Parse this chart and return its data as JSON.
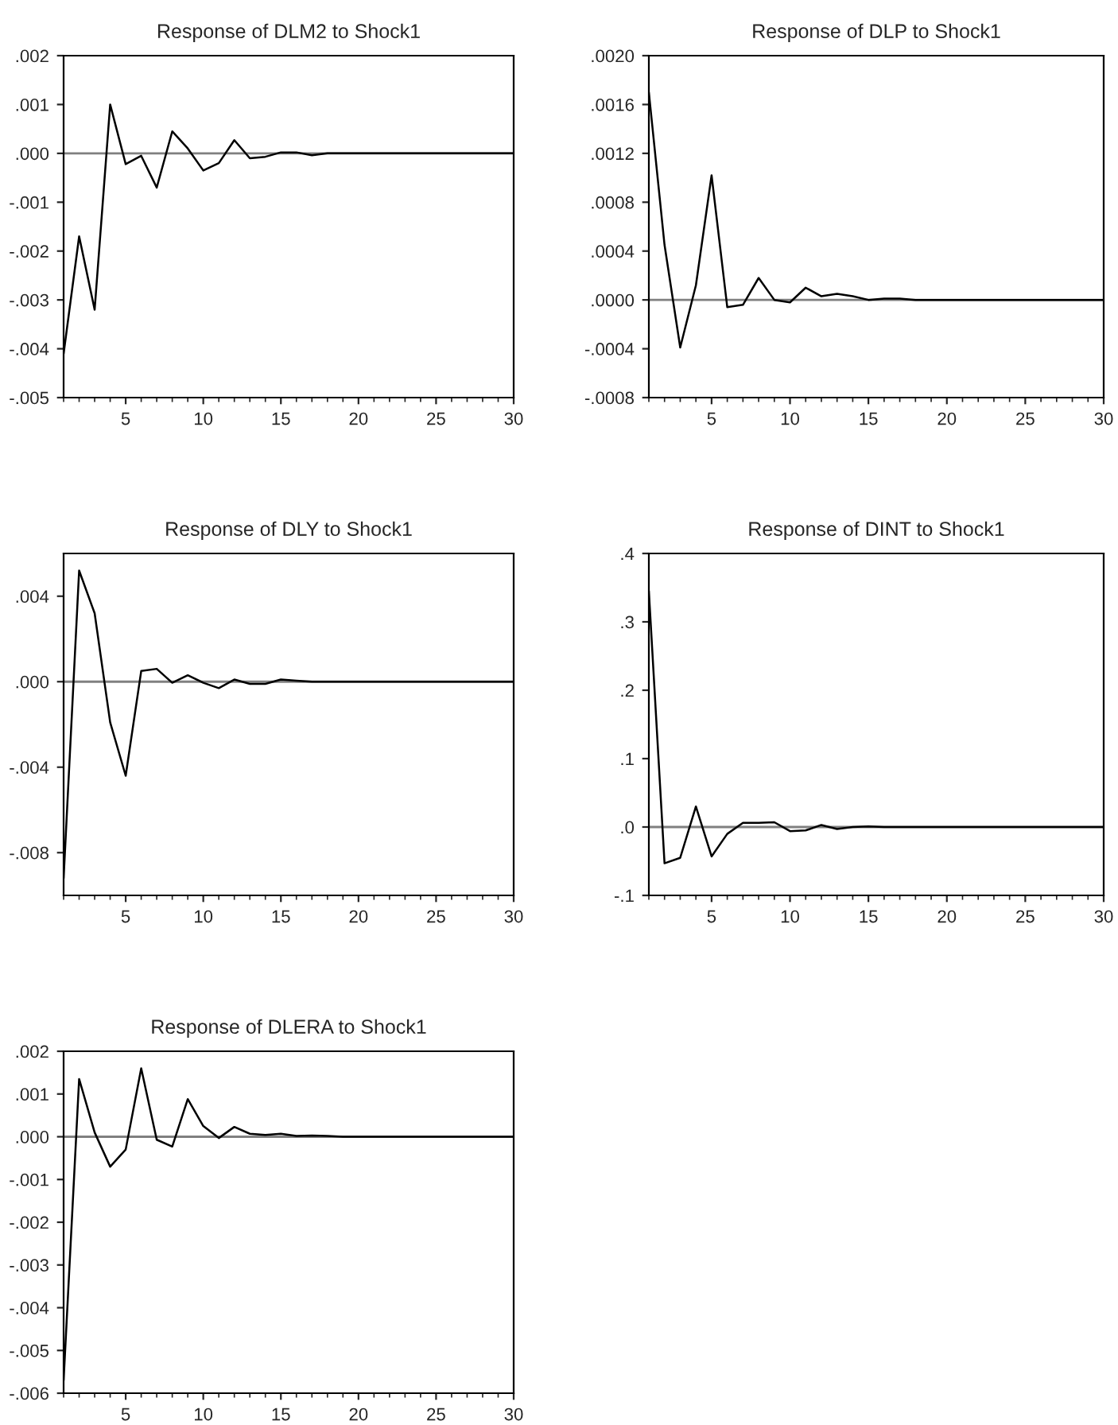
{
  "chart_data": [
    {
      "type": "line",
      "title": "Response of DLM2 to Shock1",
      "x": [
        1,
        2,
        3,
        4,
        5,
        6,
        7,
        8,
        9,
        10,
        11,
        12,
        13,
        14,
        15,
        16,
        17,
        18,
        19,
        20,
        21,
        22,
        23,
        24,
        25,
        26,
        27,
        28,
        29,
        30
      ],
      "series": [
        {
          "color": "#000000",
          "values": [
            -0.0041,
            -0.0017,
            -0.0032,
            0.001,
            -0.00022,
            -5e-05,
            -0.0007,
            0.00045,
            0.0001,
            -0.00035,
            -0.0002,
            0.00027,
            -0.0001,
            -7e-05,
            2e-05,
            2e-05,
            -4e-05,
            0,
            0,
            0,
            0,
            0,
            0,
            0,
            0,
            0,
            0,
            0,
            0,
            0
          ]
        }
      ],
      "xlim": [
        1,
        30
      ],
      "xticks": [
        5,
        10,
        15,
        20,
        25,
        30
      ],
      "ylim": [
        -0.005,
        0.002
      ],
      "yticks": [
        {
          "value": -0.005,
          "label": "-.005"
        },
        {
          "value": -0.004,
          "label": "-.004"
        },
        {
          "value": -0.003,
          "label": "-.003"
        },
        {
          "value": -0.002,
          "label": "-.002"
        },
        {
          "value": -0.001,
          "label": "-.001"
        },
        {
          "value": 0,
          "label": ".000"
        },
        {
          "value": 0.001,
          "label": ".001"
        },
        {
          "value": 0.002,
          "label": ".002"
        }
      ],
      "ref_lines": [
        {
          "axis": "y",
          "value": 0,
          "color": "#808080"
        }
      ],
      "grid": false,
      "legend": false
    },
    {
      "type": "line",
      "title": "Response of DLP to Shock1",
      "x": [
        1,
        2,
        3,
        4,
        5,
        6,
        7,
        8,
        9,
        10,
        11,
        12,
        13,
        14,
        15,
        16,
        17,
        18,
        19,
        20,
        21,
        22,
        23,
        24,
        25,
        26,
        27,
        28,
        29,
        30
      ],
      "series": [
        {
          "color": "#000000",
          "values": [
            0.0017,
            0.00045,
            -0.00039,
            0.00012,
            0.00102,
            -6e-05,
            -4e-05,
            0.00018,
            0,
            -2e-05,
            0.0001,
            3e-05,
            5e-05,
            3e-05,
            0,
            1e-05,
            1e-05,
            0,
            0,
            0,
            0,
            0,
            0,
            0,
            0,
            0,
            0,
            0,
            0,
            0
          ]
        }
      ],
      "xlim": [
        1,
        30
      ],
      "xticks": [
        5,
        10,
        15,
        20,
        25,
        30
      ],
      "ylim": [
        -0.0008,
        0.002
      ],
      "yticks": [
        {
          "value": -0.0008,
          "label": "-.0008"
        },
        {
          "value": -0.0004,
          "label": "-.0004"
        },
        {
          "value": 0,
          "label": ".0000"
        },
        {
          "value": 0.0004,
          "label": ".0004"
        },
        {
          "value": 0.0008,
          "label": ".0008"
        },
        {
          "value": 0.0012,
          "label": ".0012"
        },
        {
          "value": 0.0016,
          "label": ".0016"
        },
        {
          "value": 0.002,
          "label": ".0020"
        }
      ],
      "ref_lines": [
        {
          "axis": "y",
          "value": 0,
          "color": "#808080"
        }
      ],
      "grid": false,
      "legend": false
    },
    {
      "type": "line",
      "title": "Response of DLY to Shock1",
      "x": [
        1,
        2,
        3,
        4,
        5,
        6,
        7,
        8,
        9,
        10,
        11,
        12,
        13,
        14,
        15,
        16,
        17,
        18,
        19,
        20,
        21,
        22,
        23,
        24,
        25,
        26,
        27,
        28,
        29,
        30
      ],
      "series": [
        {
          "color": "#000000",
          "values": [
            -0.0092,
            0.0052,
            0.0032,
            -0.0019,
            -0.0044,
            0.0005,
            0.0006,
            -5e-05,
            0.0003,
            -5e-05,
            -0.0003,
            0.0001,
            -0.0001,
            -0.0001,
            0.0001,
            5e-05,
            0,
            0,
            0,
            0,
            0,
            0,
            0,
            0,
            0,
            0,
            0,
            0,
            0,
            0
          ]
        }
      ],
      "xlim": [
        1,
        30
      ],
      "xticks": [
        5,
        10,
        15,
        20,
        25,
        30
      ],
      "ylim": [
        -0.01,
        0.006
      ],
      "yticks": [
        {
          "value": -0.008,
          "label": "-.008"
        },
        {
          "value": -0.004,
          "label": "-.004"
        },
        {
          "value": 0,
          "label": ".000"
        },
        {
          "value": 0.004,
          "label": ".004"
        }
      ],
      "ref_lines": [
        {
          "axis": "y",
          "value": 0,
          "color": "#808080"
        }
      ],
      "grid": false,
      "legend": false
    },
    {
      "type": "line",
      "title": "Response of DINT to Shock1",
      "x": [
        1,
        2,
        3,
        4,
        5,
        6,
        7,
        8,
        9,
        10,
        11,
        12,
        13,
        14,
        15,
        16,
        17,
        18,
        19,
        20,
        21,
        22,
        23,
        24,
        25,
        26,
        27,
        28,
        29,
        30
      ],
      "series": [
        {
          "color": "#000000",
          "values": [
            0.345,
            -0.053,
            -0.045,
            0.03,
            -0.043,
            -0.01,
            0.006,
            0.006,
            0.007,
            -0.006,
            -0.005,
            0.003,
            -0.003,
            0,
            0.001,
            0,
            0,
            0,
            0,
            0,
            0,
            0,
            0,
            0,
            0,
            0,
            0,
            0,
            0,
            0
          ]
        }
      ],
      "xlim": [
        1,
        30
      ],
      "xticks": [
        5,
        10,
        15,
        20,
        25,
        30
      ],
      "ylim": [
        -0.1,
        0.4
      ],
      "yticks": [
        {
          "value": -0.1,
          "label": "-.1"
        },
        {
          "value": 0,
          "label": ".0"
        },
        {
          "value": 0.1,
          "label": ".1"
        },
        {
          "value": 0.2,
          "label": ".2"
        },
        {
          "value": 0.3,
          "label": ".3"
        },
        {
          "value": 0.4,
          "label": ".4"
        }
      ],
      "ref_lines": [
        {
          "axis": "y",
          "value": 0,
          "color": "#808080"
        }
      ],
      "grid": false,
      "legend": false
    },
    {
      "type": "line",
      "title": "Response of DLERA to Shock1",
      "x": [
        1,
        2,
        3,
        4,
        5,
        6,
        7,
        8,
        9,
        10,
        11,
        12,
        13,
        14,
        15,
        16,
        17,
        18,
        19,
        20,
        21,
        22,
        23,
        24,
        25,
        26,
        27,
        28,
        29,
        30
      ],
      "series": [
        {
          "color": "#000000",
          "values": [
            -0.0057,
            0.00135,
            0.0001,
            -0.0007,
            -0.0003,
            0.0016,
            -7e-05,
            -0.00023,
            0.00088,
            0.00025,
            -3e-05,
            0.00023,
            7e-05,
            4e-05,
            7e-05,
            2e-05,
            3e-05,
            2e-05,
            0,
            0,
            0,
            0,
            0,
            0,
            0,
            0,
            0,
            0,
            0,
            0
          ]
        }
      ],
      "xlim": [
        1,
        30
      ],
      "xticks": [
        5,
        10,
        15,
        20,
        25,
        30
      ],
      "ylim": [
        -0.006,
        0.002
      ],
      "yticks": [
        {
          "value": -0.006,
          "label": "-.006"
        },
        {
          "value": -0.005,
          "label": "-.005"
        },
        {
          "value": -0.004,
          "label": "-.004"
        },
        {
          "value": -0.003,
          "label": "-.003"
        },
        {
          "value": -0.002,
          "label": "-.002"
        },
        {
          "value": -0.001,
          "label": "-.001"
        },
        {
          "value": 0,
          "label": ".000"
        },
        {
          "value": 0.001,
          "label": ".001"
        },
        {
          "value": 0.002,
          "label": ".002"
        }
      ],
      "ref_lines": [
        {
          "axis": "y",
          "value": 0,
          "color": "#808080"
        }
      ],
      "grid": false,
      "legend": false
    }
  ]
}
